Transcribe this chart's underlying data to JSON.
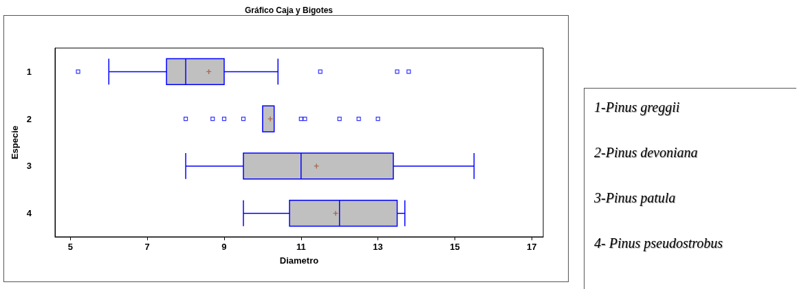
{
  "chart_data": {
    "type": "box",
    "title": "Gráfico Caja y Bigotes",
    "xlabel": "Diametro",
    "ylabel": "Especie",
    "orientation": "horizontal",
    "categories": [
      "1",
      "2",
      "3",
      "4"
    ],
    "series": [
      {
        "color": "#0000ff",
        "boxes": [
          {
            "low": 6.0,
            "q1": 7.5,
            "median": 8.0,
            "q3": 9.0,
            "high": 10.4,
            "mean": 8.6,
            "outliers": [
              5.2,
              11.5,
              13.5,
              13.8
            ]
          },
          {
            "low": 10.0,
            "q1": 10.0,
            "median": 10.0,
            "q3": 10.3,
            "high": 10.3,
            "mean": 10.2,
            "outliers": [
              8.0,
              8.7,
              9.0,
              9.5,
              11.0,
              11.1,
              12.0,
              12.5,
              13.0
            ]
          },
          {
            "low": 8.0,
            "q1": 9.5,
            "median": 11.0,
            "q3": 13.4,
            "high": 15.5,
            "mean": 11.4
          },
          {
            "low": 9.5,
            "q1": 10.7,
            "median": 12.0,
            "q3": 13.5,
            "high": 13.7,
            "mean": 11.9
          }
        ]
      }
    ],
    "xlim": [
      4.6,
      17.3
    ],
    "xticks": [
      5,
      7,
      9,
      11,
      13,
      15,
      17
    ],
    "grid": false,
    "annotations": [
      "1-Pinus greggii",
      "2-Pinus devoniana",
      "3-Pinus patula",
      "4- Pinus pseudostrobus"
    ]
  }
}
